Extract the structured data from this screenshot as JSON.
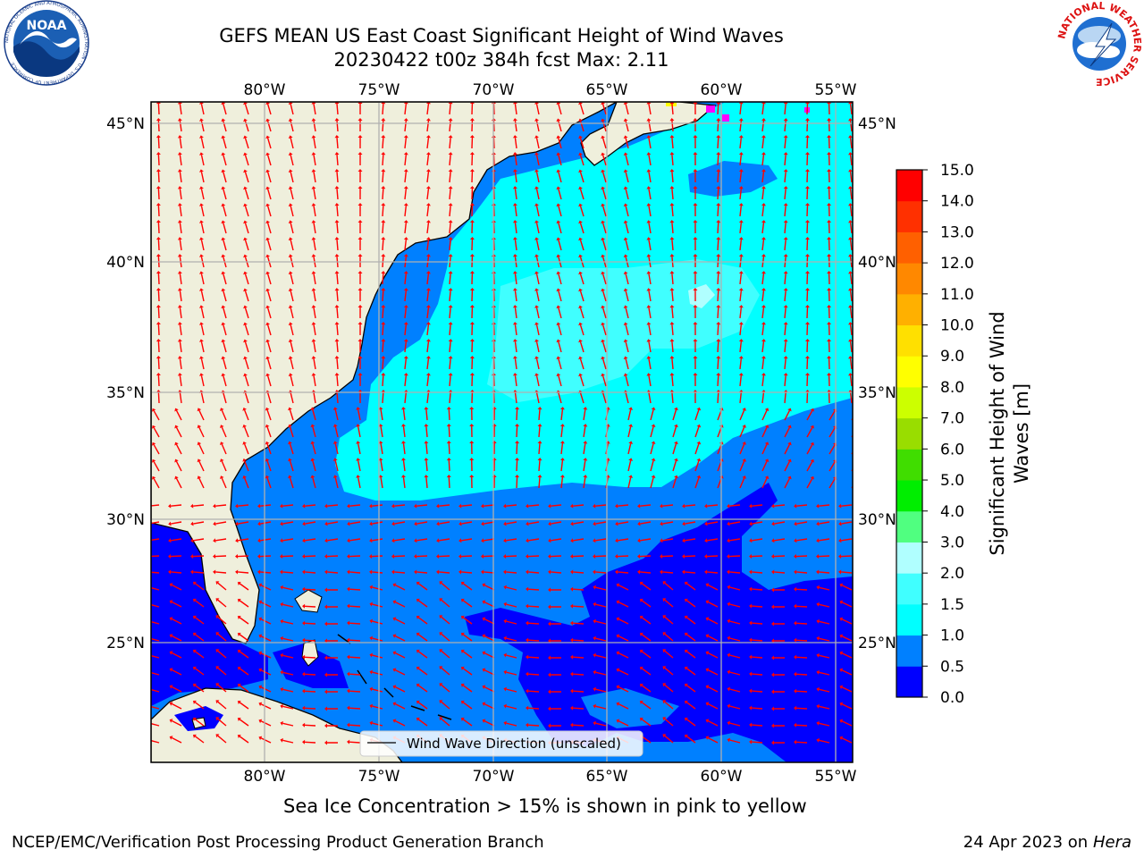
{
  "header": {
    "title_line1": "GEFS MEAN US East Coast Significant Height of Wind Waves",
    "title_line2": "20230422 t00z 384h fcst   Max: 2.11"
  },
  "logos": {
    "noaa_text": "NOAA",
    "noaa_ring_text": "NATIONAL OCEANIC AND ATMOSPHERIC ADMINISTRATION · U.S. DEPARTMENT OF COMMERCE",
    "nws_ring_text": "NATIONAL WEATHER SERVICE"
  },
  "axes": {
    "lon_labels": [
      "80°W",
      "75°W",
      "70°W",
      "65°W",
      "60°W",
      "55°W"
    ],
    "lat_labels": [
      "45°N",
      "40°N",
      "35°N",
      "30°N",
      "25°N"
    ]
  },
  "legend": {
    "label": "Wind Wave Direction (unscaled)"
  },
  "colorbar": {
    "label": "Significant Height of Wind Waves [m]",
    "ticks": [
      "0.0",
      "0.5",
      "1.0",
      "1.5",
      "2.0",
      "3.0",
      "4.0",
      "5.0",
      "6.0",
      "7.0",
      "8.0",
      "9.0",
      "10.0",
      "11.0",
      "12.0",
      "13.0",
      "14.0",
      "15.0"
    ],
    "colors": [
      "#0000ff",
      "#0080ff",
      "#00ffff",
      "#40ffff",
      "#b0ffff",
      "#50ff80",
      "#00ee00",
      "#40dd00",
      "#99dd00",
      "#ccff00",
      "#ffff00",
      "#ffe000",
      "#ffb000",
      "#ff8800",
      "#ff6000",
      "#ff3000",
      "#ff0000"
    ]
  },
  "map_colors": {
    "land": "#efefdc",
    "band_0_05": "#0000ff",
    "band_05_1": "#0080ff",
    "band_1_15": "#00ffff",
    "band_15_2": "#40ffff",
    "band_2_3": "#b0ffff",
    "ice": "#ff00ff",
    "arrow": "#ff0000",
    "grid": "#b0b0b0"
  },
  "note": "Sea Ice Concentration > 15% is shown in pink to yellow",
  "footer": {
    "left": "NCEP/EMC/Verification Post Processing Product Generation Branch",
    "date": "24 Apr 2023 on ",
    "machine": "Hera"
  }
}
